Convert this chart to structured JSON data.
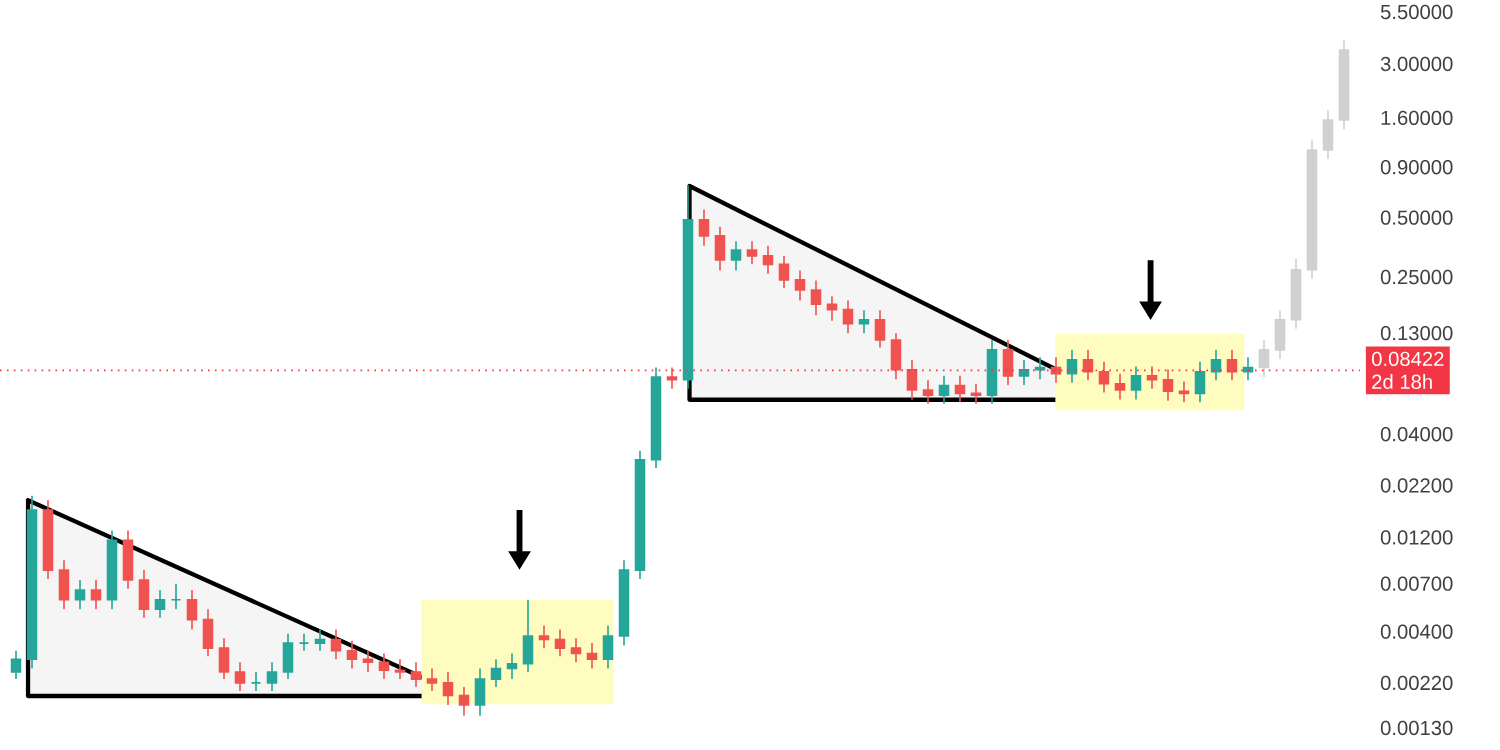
{
  "chart_data": {
    "type": "candlestick",
    "categories": [
      null,
      null,
      null,
      null,
      null,
      null,
      null,
      null,
      null,
      null,
      null,
      null,
      null,
      null,
      null,
      null,
      null,
      null,
      null,
      null,
      null,
      null,
      null,
      null,
      null,
      null,
      null,
      null,
      null,
      null,
      null,
      null,
      null,
      null,
      null,
      null,
      null,
      null,
      null,
      null,
      null,
      null,
      null,
      null,
      null,
      null,
      null,
      null,
      null,
      null,
      null,
      null,
      null,
      null,
      null,
      null,
      null,
      null,
      null,
      null,
      null,
      null,
      null,
      null,
      null,
      null,
      null,
      null,
      null,
      null,
      null,
      null,
      null,
      null,
      null,
      null,
      null,
      null,
      null,
      null,
      null,
      null,
      null,
      null
    ],
    "log": "y",
    "tick_labels": "y",
    "ylim": [
      0.0013,
      5.5
    ],
    "yticks": [
      {
        "value": 0.0013,
        "label": "0.00130"
      },
      {
        "value": 0.0022,
        "label": "0.00220"
      },
      {
        "value": 0.004,
        "label": "0.00400"
      },
      {
        "value": 0.007,
        "label": "0.00700"
      },
      {
        "value": 0.012,
        "label": "0.01200"
      },
      {
        "value": 0.022,
        "label": "0.02200"
      },
      {
        "value": 0.04,
        "label": "0.04000"
      },
      {
        "value": 0.13,
        "label": "0.13000"
      },
      {
        "value": 0.25,
        "label": "0.25000"
      },
      {
        "value": 0.5,
        "label": "0.50000"
      },
      {
        "value": 0.9,
        "label": "0.90000"
      },
      {
        "value": 1.6,
        "label": "1.60000"
      },
      {
        "value": 3.0,
        "label": "3.00000"
      },
      {
        "value": 5.5,
        "label": "5.50000"
      }
    ],
    "ref_lines": [
      {
        "axis": "y",
        "value": 0.08422,
        "label": "0.08422",
        "color": "#f23645",
        "line_style": "dotted"
      }
    ],
    "annotations": [
      "2d 18h"
    ],
    "series": [
      {
        "ohlc": [
          [
            0.0025,
            0.0032,
            0.0023,
            0.0029
          ],
          [
            0.0029,
            0.0195,
            0.0026,
            0.0165
          ],
          [
            0.0165,
            0.0185,
            0.0074,
            0.0082
          ],
          [
            0.0082,
            0.0092,
            0.0052,
            0.0058
          ],
          [
            0.0058,
            0.0073,
            0.0052,
            0.0065
          ],
          [
            0.0065,
            0.0073,
            0.0052,
            0.0058
          ],
          [
            0.0058,
            0.013,
            0.0052,
            0.0116
          ],
          [
            0.0116,
            0.013,
            0.0066,
            0.0073
          ],
          [
            0.0073,
            0.0082,
            0.0047,
            0.0052
          ],
          [
            0.0052,
            0.0065,
            0.0047,
            0.0058
          ],
          [
            0.0058,
            0.007,
            0.0052,
            0.0058
          ],
          [
            0.0058,
            0.0065,
            0.0041,
            0.0046
          ],
          [
            0.0046,
            0.0052,
            0.003,
            0.0033
          ],
          [
            0.0033,
            0.0037,
            0.0023,
            0.0025
          ],
          [
            0.0025,
            0.0028,
            0.002,
            0.0022
          ],
          [
            0.0022,
            0.0025,
            0.002,
            0.0022
          ],
          [
            0.0022,
            0.0028,
            0.002,
            0.0025
          ],
          [
            0.0025,
            0.0039,
            0.0023,
            0.0035
          ],
          [
            0.0035,
            0.0039,
            0.0032,
            0.0035
          ],
          [
            0.0035,
            0.0041,
            0.0032,
            0.00365
          ],
          [
            0.00365,
            0.0041,
            0.0029,
            0.0032
          ],
          [
            0.0032,
            0.0036,
            0.0026,
            0.0029
          ],
          [
            0.0029,
            0.0032,
            0.0025,
            0.0028
          ],
          [
            0.0028,
            0.0031,
            0.0023,
            0.00255
          ],
          [
            0.00255,
            0.0029,
            0.0023,
            0.0025
          ],
          [
            0.0025,
            0.0028,
            0.0021,
            0.0023
          ],
          [
            0.0023,
            0.0026,
            0.002,
            0.0022
          ],
          [
            0.0022,
            0.0025,
            0.0017,
            0.0019
          ],
          [
            0.0019,
            0.0021,
            0.0015,
            0.0017
          ],
          [
            0.0017,
            0.0026,
            0.0015,
            0.0023
          ],
          [
            0.0023,
            0.0029,
            0.0021,
            0.0026
          ],
          [
            0.0026,
            0.0031,
            0.0023,
            0.00275
          ],
          [
            0.00275,
            0.0058,
            0.0025,
            0.0038
          ],
          [
            0.0038,
            0.0043,
            0.0033,
            0.00365
          ],
          [
            0.00365,
            0.0041,
            0.003,
            0.0033
          ],
          [
            0.0033,
            0.0037,
            0.0028,
            0.0031
          ],
          [
            0.0031,
            0.0035,
            0.0026,
            0.0029
          ],
          [
            0.0029,
            0.0043,
            0.0026,
            0.0038
          ],
          [
            0.0038,
            0.0092,
            0.0034,
            0.0082
          ],
          [
            0.0082,
            0.033,
            0.0074,
            0.0297
          ],
          [
            0.0297,
            0.087,
            0.027,
            0.078
          ],
          [
            0.078,
            0.087,
            0.068,
            0.0755
          ],
          [
            0.0755,
            0.73,
            0.068,
            0.487
          ],
          [
            0.487,
            0.55,
            0.36,
            0.404
          ],
          [
            0.404,
            0.45,
            0.27,
            0.305
          ],
          [
            0.305,
            0.38,
            0.27,
            0.343
          ],
          [
            0.343,
            0.38,
            0.29,
            0.32
          ],
          [
            0.32,
            0.36,
            0.26,
            0.29
          ],
          [
            0.29,
            0.32,
            0.22,
            0.242
          ],
          [
            0.242,
            0.27,
            0.19,
            0.215
          ],
          [
            0.215,
            0.24,
            0.16,
            0.182
          ],
          [
            0.182,
            0.2,
            0.15,
            0.171
          ],
          [
            0.171,
            0.19,
            0.13,
            0.145
          ],
          [
            0.145,
            0.17,
            0.13,
            0.152
          ],
          [
            0.152,
            0.17,
            0.11,
            0.12
          ],
          [
            0.12,
            0.13,
            0.076,
            0.0848
          ],
          [
            0.0848,
            0.095,
            0.06,
            0.067
          ],
          [
            0.067,
            0.075,
            0.057,
            0.063
          ],
          [
            0.063,
            0.079,
            0.057,
            0.0705
          ],
          [
            0.0705,
            0.079,
            0.058,
            0.0644
          ],
          [
            0.0644,
            0.072,
            0.057,
            0.063
          ],
          [
            0.063,
            0.12,
            0.057,
            0.107
          ],
          [
            0.107,
            0.12,
            0.071,
            0.079
          ],
          [
            0.079,
            0.095,
            0.071,
            0.0848
          ],
          [
            0.0848,
            0.098,
            0.076,
            0.0871
          ],
          [
            0.0871,
            0.098,
            0.073,
            0.081
          ],
          [
            0.081,
            0.107,
            0.073,
            0.0952
          ],
          [
            0.0952,
            0.107,
            0.075,
            0.0828
          ],
          [
            0.0828,
            0.093,
            0.065,
            0.072
          ],
          [
            0.072,
            0.081,
            0.06,
            0.067
          ],
          [
            0.067,
            0.088,
            0.06,
            0.079
          ],
          [
            0.079,
            0.088,
            0.068,
            0.0755
          ],
          [
            0.0755,
            0.085,
            0.059,
            0.066
          ],
          [
            0.066,
            0.074,
            0.058,
            0.0644
          ],
          [
            0.0644,
            0.093,
            0.058,
            0.0828
          ],
          [
            0.0828,
            0.107,
            0.075,
            0.0952
          ],
          [
            0.0952,
            0.107,
            0.075,
            0.0828
          ],
          [
            0.0828,
            0.098,
            0.075,
            0.0871
          ],
          null,
          null,
          null,
          null,
          null,
          null
        ],
        "colors": [
          "#26a69a",
          "#26a69a",
          "#ef5350",
          "#ef5350",
          "#26a69a",
          "#ef5350",
          "#26a69a",
          "#ef5350",
          "#ef5350",
          "#26a69a",
          "#26a69a",
          "#ef5350",
          "#ef5350",
          "#ef5350",
          "#ef5350",
          "#26a69a",
          "#26a69a",
          "#26a69a",
          "#26a69a",
          "#26a69a",
          "#ef5350",
          "#ef5350",
          "#ef5350",
          "#ef5350",
          "#ef5350",
          "#ef5350",
          "#ef5350",
          "#ef5350",
          "#ef5350",
          "#26a69a",
          "#26a69a",
          "#26a69a",
          "#26a69a",
          "#ef5350",
          "#ef5350",
          "#ef5350",
          "#ef5350",
          "#26a69a",
          "#26a69a",
          "#26a69a",
          "#26a69a",
          "#ef5350",
          "#26a69a",
          "#ef5350",
          "#ef5350",
          "#26a69a",
          "#ef5350",
          "#ef5350",
          "#ef5350",
          "#ef5350",
          "#ef5350",
          "#ef5350",
          "#ef5350",
          "#26a69a",
          "#ef5350",
          "#ef5350",
          "#ef5350",
          "#ef5350",
          "#26a69a",
          "#ef5350",
          "#ef5350",
          "#26a69a",
          "#ef5350",
          "#26a69a",
          "#26a69a",
          "#ef5350",
          "#26a69a",
          "#ef5350",
          "#ef5350",
          "#ef5350",
          "#26a69a",
          "#ef5350",
          "#ef5350",
          "#ef5350",
          "#26a69a",
          "#26a69a",
          "#ef5350",
          "#26a69a",
          null,
          null,
          null,
          null,
          null,
          null
        ]
      },
      {
        "color": "#d0d0d0",
        "ohlc": [
          null,
          null,
          null,
          null,
          null,
          null,
          null,
          null,
          null,
          null,
          null,
          null,
          null,
          null,
          null,
          null,
          null,
          null,
          null,
          null,
          null,
          null,
          null,
          null,
          null,
          null,
          null,
          null,
          null,
          null,
          null,
          null,
          null,
          null,
          null,
          null,
          null,
          null,
          null,
          null,
          null,
          null,
          null,
          null,
          null,
          null,
          null,
          null,
          null,
          null,
          null,
          null,
          null,
          null,
          null,
          null,
          null,
          null,
          null,
          null,
          null,
          null,
          null,
          null,
          null,
          null,
          null,
          null,
          null,
          null,
          null,
          null,
          null,
          null,
          null,
          null,
          null,
          null,
          [
            0.0871,
            0.12,
            0.078,
            0.107
          ],
          [
            0.107,
            0.17,
            0.096,
            0.152
          ],
          [
            0.152,
            0.31,
            0.137,
            0.272
          ],
          [
            0.272,
            1.23,
            0.245,
            1.1
          ],
          [
            1.1,
            1.75,
            0.99,
            1.56
          ],
          [
            1.56,
            3.95,
            1.4,
            3.53
          ]
        ]
      }
    ]
  }
}
